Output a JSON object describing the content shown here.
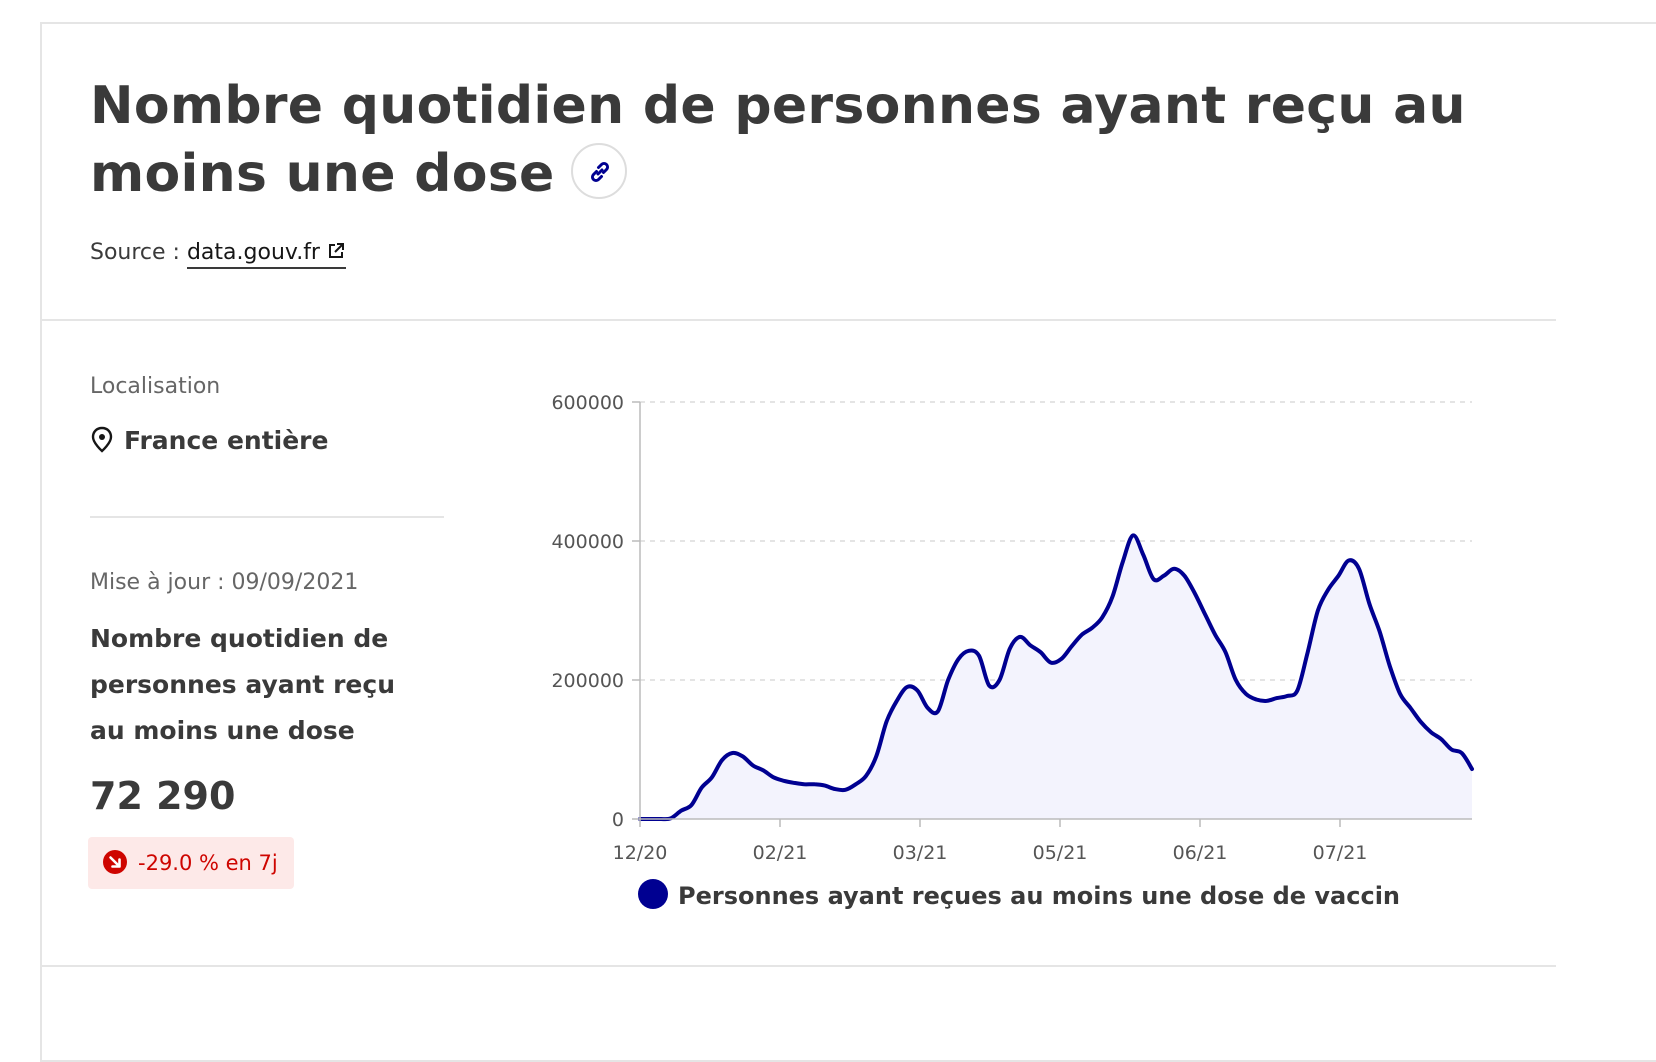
{
  "header": {
    "title": "Nombre quotidien de personnes ayant reçu au moins une dose",
    "link_icon": "link-icon",
    "source_label": "Source :",
    "source_link": "data.gouv.fr",
    "external_icon": "external-link-icon"
  },
  "sidebar": {
    "location_label": "Localisation",
    "location_icon": "map-pin-icon",
    "location_value": "France entière",
    "update_label": "Mise à jour : 09/09/2021",
    "kpi_title": "Nombre quotidien de personnes ayant reçu au moins une dose",
    "kpi_value": "72 290",
    "trend_icon": "arrow-down-right-icon",
    "trend_text": "-29.0 % en 7j",
    "trend_color": "#ce0500"
  },
  "chart_data": {
    "type": "area",
    "x_tick_labels": [
      "12/20",
      "02/21",
      "03/21",
      "05/21",
      "06/21",
      "07/21"
    ],
    "y_ticks": [
      0,
      200000,
      400000,
      600000
    ],
    "ylim": [
      0,
      600000
    ],
    "grid": true,
    "legend_position": "bottom",
    "color": "#000091",
    "series": [
      {
        "name": "Personnes ayant reçues au moins une dose de vaccin",
        "values": [
          0,
          0,
          0,
          1000,
          12000,
          20000,
          45000,
          60000,
          85000,
          95000,
          90000,
          77000,
          70000,
          60000,
          55000,
          52000,
          50000,
          50000,
          48000,
          43000,
          42000,
          50000,
          62000,
          90000,
          140000,
          170000,
          190000,
          185000,
          160000,
          155000,
          200000,
          230000,
          242000,
          235000,
          192000,
          200000,
          245000,
          262000,
          250000,
          240000,
          225000,
          230000,
          248000,
          265000,
          275000,
          290000,
          320000,
          370000,
          408000,
          380000,
          345000,
          350000,
          360000,
          350000,
          325000,
          295000,
          265000,
          240000,
          200000,
          180000,
          172000,
          170000,
          174000,
          177000,
          185000,
          240000,
          300000,
          330000,
          350000,
          372000,
          360000,
          310000,
          270000,
          220000,
          180000,
          160000,
          140000,
          125000,
          115000,
          100000,
          95000,
          72000
        ]
      }
    ]
  }
}
